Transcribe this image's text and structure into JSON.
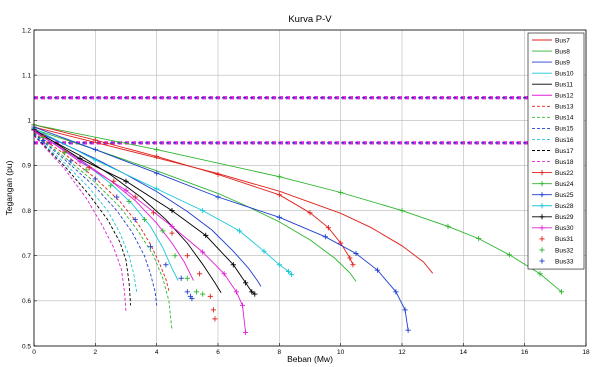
{
  "chart_data": {
    "type": "line",
    "title": "Kurva P-V",
    "xlabel": "Beban (Mw)",
    "ylabel": "Tegangan (pu)",
    "xlim": [
      0,
      18
    ],
    "ylim": [
      0.5,
      1.2
    ],
    "xticks": [
      "0",
      "2",
      "4",
      "6",
      "8",
      "10",
      "12",
      "14",
      "16",
      "18"
    ],
    "yticks": [
      "0.5",
      "0.6",
      "0.7",
      "0.8",
      "0.9",
      "1",
      "1.1",
      "1.2"
    ],
    "grid": true,
    "legend_position": "right-inside",
    "reference_lines": [
      1.05,
      0.95
    ],
    "series": [
      {
        "name": "Bus7",
        "color": "#e0201b",
        "style": "solid",
        "marker": "",
        "x": [
          0,
          2,
          4,
          6,
          8,
          10,
          11,
          12,
          12.7,
          13.0
        ],
        "y": [
          0.985,
          0.951,
          0.917,
          0.882,
          0.843,
          0.794,
          0.762,
          0.722,
          0.686,
          0.661
        ]
      },
      {
        "name": "Bus8",
        "color": "#2db52d",
        "style": "solid",
        "marker": "",
        "x": [
          0,
          2,
          4,
          6,
          7,
          8,
          9,
          9.8,
          10.3,
          10.5
        ],
        "y": [
          0.98,
          0.935,
          0.888,
          0.838,
          0.808,
          0.775,
          0.735,
          0.695,
          0.662,
          0.643
        ]
      },
      {
        "name": "Bus9",
        "color": "#1f3fd0",
        "style": "solid",
        "marker": "",
        "x": [
          0,
          2,
          3,
          4,
          5,
          5.8,
          6.5,
          7,
          7.3,
          7.4
        ],
        "y": [
          0.978,
          0.915,
          0.88,
          0.842,
          0.798,
          0.757,
          0.71,
          0.672,
          0.643,
          0.632
        ]
      },
      {
        "name": "Bus10",
        "color": "#19c8d8",
        "style": "solid",
        "marker": "",
        "x": [
          0,
          1.5,
          2.5,
          3.2,
          3.8,
          4.2,
          4.5,
          4.7
        ],
        "y": [
          0.975,
          0.912,
          0.86,
          0.815,
          0.765,
          0.718,
          0.672,
          0.645
        ]
      },
      {
        "name": "Bus11",
        "color": "#000000",
        "style": "solid",
        "marker": "",
        "x": [
          0,
          1.5,
          2.5,
          3.5,
          4.3,
          5,
          5.5,
          5.9,
          6.1
        ],
        "y": [
          0.976,
          0.922,
          0.879,
          0.829,
          0.78,
          0.728,
          0.681,
          0.64,
          0.618
        ]
      },
      {
        "name": "Bus12",
        "color": "#e020d8",
        "style": "solid",
        "marker": "",
        "x": [
          0,
          1.5,
          2.5,
          3.3,
          4.0,
          4.5,
          4.9,
          5.2
        ],
        "y": [
          0.975,
          0.913,
          0.866,
          0.822,
          0.772,
          0.728,
          0.686,
          0.645
        ]
      },
      {
        "name": "Bus13",
        "color": "#e0201b",
        "style": "dashed",
        "marker": "",
        "x": [
          0,
          1,
          2,
          2.8,
          3.4,
          3.8,
          4.1,
          4.3,
          4.4
        ],
        "y": [
          0.972,
          0.925,
          0.872,
          0.82,
          0.77,
          0.725,
          0.682,
          0.648,
          0.622
        ]
      },
      {
        "name": "Bus14",
        "color": "#2db52d",
        "style": "dashed",
        "marker": "",
        "x": [
          0,
          1,
          2,
          2.8,
          3.4,
          3.9,
          4.2,
          4.4,
          4.5
        ],
        "y": [
          0.971,
          0.918,
          0.862,
          0.808,
          0.754,
          0.7,
          0.65,
          0.6,
          0.535
        ]
      },
      {
        "name": "Bus15",
        "color": "#1f3fd0",
        "style": "dashed",
        "marker": "",
        "x": [
          0,
          1,
          2,
          2.7,
          3.2,
          3.6,
          3.8,
          3.95,
          4.0
        ],
        "y": [
          0.97,
          0.913,
          0.852,
          0.8,
          0.752,
          0.7,
          0.66,
          0.62,
          0.59
        ]
      },
      {
        "name": "Bus16",
        "color": "#19c8d8",
        "style": "dashed",
        "marker": "",
        "x": [
          0,
          1,
          1.8,
          2.4,
          2.8,
          3.1,
          3.25,
          3.35
        ],
        "y": [
          0.968,
          0.905,
          0.85,
          0.8,
          0.75,
          0.7,
          0.66,
          0.62
        ]
      },
      {
        "name": "Bus17",
        "color": "#000000",
        "style": "dashed",
        "marker": "",
        "x": [
          0,
          1,
          1.8,
          2.4,
          2.8,
          3.0,
          3.1,
          3.15
        ],
        "y": [
          0.967,
          0.898,
          0.835,
          0.78,
          0.73,
          0.69,
          0.64,
          0.59
        ]
      },
      {
        "name": "Bus18",
        "color": "#e020d8",
        "style": "dashed",
        "marker": "",
        "x": [
          0,
          1,
          1.7,
          2.2,
          2.6,
          2.85,
          2.95,
          3.0
        ],
        "y": [
          0.966,
          0.892,
          0.828,
          0.77,
          0.718,
          0.67,
          0.62,
          0.575
        ]
      },
      {
        "name": "Bus22",
        "color": "#e0201b",
        "style": "solid",
        "marker": "+",
        "x": [
          0,
          2,
          4,
          6,
          8,
          9,
          9.6,
          10.0,
          10.3,
          10.4
        ],
        "y": [
          0.99,
          0.956,
          0.92,
          0.88,
          0.835,
          0.795,
          0.762,
          0.728,
          0.695,
          0.68
        ]
      },
      {
        "name": "Bus24",
        "color": "#2db52d",
        "style": "solid",
        "marker": "+",
        "x": [
          0,
          4,
          8,
          10,
          12,
          13.5,
          14.5,
          15.5,
          16.5,
          17.2
        ],
        "y": [
          0.99,
          0.935,
          0.875,
          0.84,
          0.8,
          0.765,
          0.738,
          0.702,
          0.66,
          0.62
        ]
      },
      {
        "name": "Bus25",
        "color": "#1f3fd0",
        "style": "solid",
        "marker": "+",
        "x": [
          0,
          2,
          4,
          6,
          8,
          9.5,
          10.5,
          11.2,
          11.8,
          12.1,
          12.2
        ],
        "y": [
          0.985,
          0.935,
          0.883,
          0.83,
          0.785,
          0.742,
          0.705,
          0.668,
          0.62,
          0.58,
          0.535
        ]
      },
      {
        "name": "Bus28",
        "color": "#19c8d8",
        "style": "solid",
        "marker": "+",
        "x": [
          0,
          2,
          4,
          5.5,
          6.7,
          7.5,
          8.0,
          8.3,
          8.4
        ],
        "y": [
          0.982,
          0.912,
          0.848,
          0.8,
          0.755,
          0.71,
          0.68,
          0.665,
          0.658
        ]
      },
      {
        "name": "Bus29",
        "color": "#000000",
        "style": "solid",
        "marker": "+",
        "x": [
          0,
          1.5,
          3,
          4.5,
          5.6,
          6.5,
          6.9,
          7.1,
          7.2
        ],
        "y": [
          0.98,
          0.915,
          0.865,
          0.8,
          0.745,
          0.68,
          0.64,
          0.62,
          0.615
        ]
      },
      {
        "name": "Bus30",
        "color": "#e020d8",
        "style": "solid",
        "marker": "+",
        "x": [
          0,
          1.5,
          3,
          4.5,
          5.5,
          6.2,
          6.6,
          6.8,
          6.9
        ],
        "y": [
          0.978,
          0.908,
          0.845,
          0.765,
          0.708,
          0.66,
          0.62,
          0.59,
          0.53
        ]
      },
      {
        "name": "Bus31",
        "color": "#e0201b",
        "style": "none",
        "marker": "+",
        "x": [
          0.3,
          1.0,
          1.8,
          2.6,
          3.3,
          3.9,
          4.5,
          5.0,
          5.4,
          5.75,
          5.85,
          5.9
        ],
        "y": [
          0.965,
          0.93,
          0.895,
          0.865,
          0.83,
          0.795,
          0.75,
          0.7,
          0.66,
          0.61,
          0.58,
          0.56
        ]
      },
      {
        "name": "Bus32",
        "color": "#2db52d",
        "style": "none",
        "marker": "+",
        "x": [
          0.3,
          1.0,
          1.7,
          2.5,
          3.1,
          3.6,
          4.2,
          4.6,
          5.0,
          5.3,
          5.5
        ],
        "y": [
          0.962,
          0.928,
          0.89,
          0.855,
          0.82,
          0.78,
          0.755,
          0.7,
          0.65,
          0.62,
          0.615
        ]
      },
      {
        "name": "Bus33",
        "color": "#1f3fd0",
        "style": "none",
        "marker": "+",
        "x": [
          0.3,
          1.2,
          2.0,
          2.7,
          3.3,
          3.8,
          4.3,
          4.8,
          5.0,
          5.1,
          5.15
        ],
        "y": [
          0.955,
          0.91,
          0.87,
          0.83,
          0.78,
          0.72,
          0.68,
          0.65,
          0.62,
          0.61,
          0.605
        ]
      }
    ]
  }
}
